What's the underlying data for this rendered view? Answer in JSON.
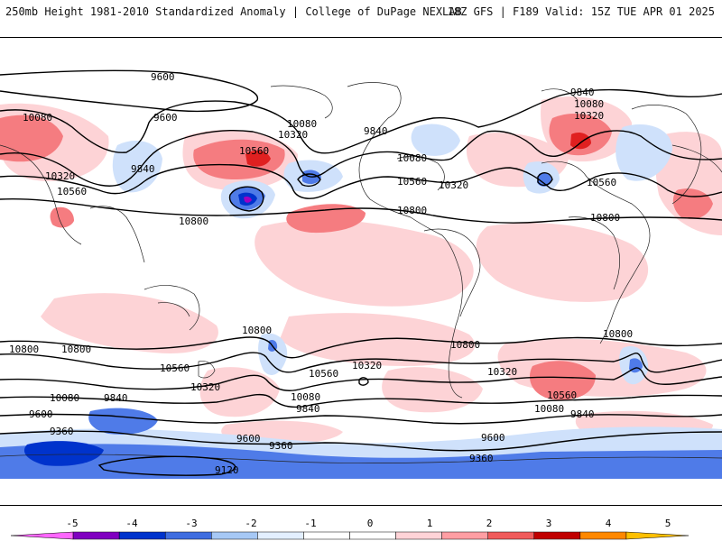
{
  "header": {
    "left": "250mb Height 1981-2010 Standardized Anomaly | College of DuPage NEXLAB",
    "right": "18Z GFS | F189 Valid: 15Z TUE APR 01 2025"
  },
  "contour_labels": [
    {
      "text": "9600"
    },
    {
      "text": "9600"
    },
    {
      "text": "10080"
    },
    {
      "text": "9840"
    },
    {
      "text": "10320"
    },
    {
      "text": "10560"
    },
    {
      "text": "10080"
    },
    {
      "text": "10320"
    },
    {
      "text": "10560"
    },
    {
      "text": "10800"
    },
    {
      "text": "9840"
    },
    {
      "text": "10080"
    },
    {
      "text": "10560"
    },
    {
      "text": "10320"
    },
    {
      "text": "10800"
    },
    {
      "text": "9840"
    },
    {
      "text": "10080"
    },
    {
      "text": "10320"
    },
    {
      "text": "10560"
    },
    {
      "text": "10800"
    },
    {
      "text": "10800"
    },
    {
      "text": "10800"
    },
    {
      "text": "10800"
    },
    {
      "text": "10560"
    },
    {
      "text": "10320"
    },
    {
      "text": "10080"
    },
    {
      "text": "9840"
    },
    {
      "text": "9600"
    },
    {
      "text": "9360"
    },
    {
      "text": "10560"
    },
    {
      "text": "10320"
    },
    {
      "text": "10080"
    },
    {
      "text": "9840"
    },
    {
      "text": "9600"
    },
    {
      "text": "9360"
    },
    {
      "text": "9120"
    },
    {
      "text": "10800"
    },
    {
      "text": "10320"
    },
    {
      "text": "10560"
    },
    {
      "text": "10080"
    },
    {
      "text": "9840"
    },
    {
      "text": "9600"
    },
    {
      "text": "9360"
    },
    {
      "text": "10800"
    }
  ],
  "colorbar": {
    "ticks": [
      "-5",
      "-4",
      "-3",
      "-2",
      "-1",
      "0",
      "1",
      "2",
      "3",
      "4",
      "5"
    ],
    "colors": [
      "#ff66ff",
      "#8000c0",
      "#0033cc",
      "#3f6de0",
      "#a6c8f5",
      "#e3efff",
      "#ffffff",
      "#ffffff",
      "#ffd3d7",
      "#ff9ea3",
      "#f05b5b",
      "#c00000",
      "#ff8800",
      "#ffc000"
    ]
  },
  "colors": {
    "neg_light": "#cfe1fb",
    "neg_mid": "#4f7be8",
    "neg_dark": "#0033cc",
    "pos_light": "#fdd3d6",
    "pos_mid": "#f57c80",
    "pos_dark": "#e02020",
    "contour": "#000000",
    "coast": "#222222"
  }
}
